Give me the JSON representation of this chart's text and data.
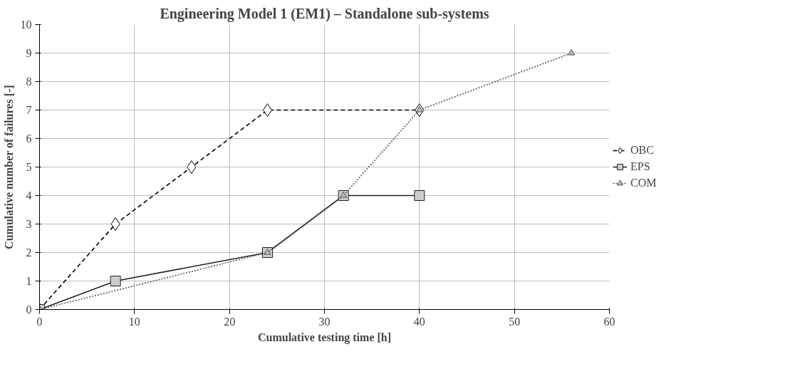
{
  "chart_data": {
    "type": "line",
    "title": "Engineering Model 1 (EM1) – Standalone sub-systems",
    "xlabel": "Cumulative testing time [h]",
    "ylabel": "Cumulative number of failures [-]",
    "xlim": [
      0,
      60
    ],
    "xticks": [
      0,
      10,
      20,
      30,
      40,
      50,
      60
    ],
    "ylim": [
      0,
      10
    ],
    "yticks": [
      0,
      1,
      2,
      3,
      4,
      5,
      6,
      7,
      8,
      9,
      10
    ],
    "grid": true,
    "legend": "right",
    "series": [
      {
        "name": "OBC",
        "color": "#000000",
        "marker": "diamond",
        "line_style": "dashed",
        "x": [
          0,
          8,
          16,
          24,
          40
        ],
        "values": [
          0,
          3,
          5,
          7,
          7
        ]
      },
      {
        "name": "EPS",
        "color": "#222222",
        "marker": "square",
        "line_style": "solid",
        "x": [
          0,
          8,
          24,
          32,
          40
        ],
        "values": [
          0,
          1,
          2,
          4,
          4
        ]
      },
      {
        "name": "COM",
        "color": "#555555",
        "marker": "triangle",
        "line_style": "dotted",
        "x": [
          0,
          24,
          32,
          40,
          56
        ],
        "values": [
          0,
          2,
          4,
          7,
          9
        ]
      }
    ]
  }
}
